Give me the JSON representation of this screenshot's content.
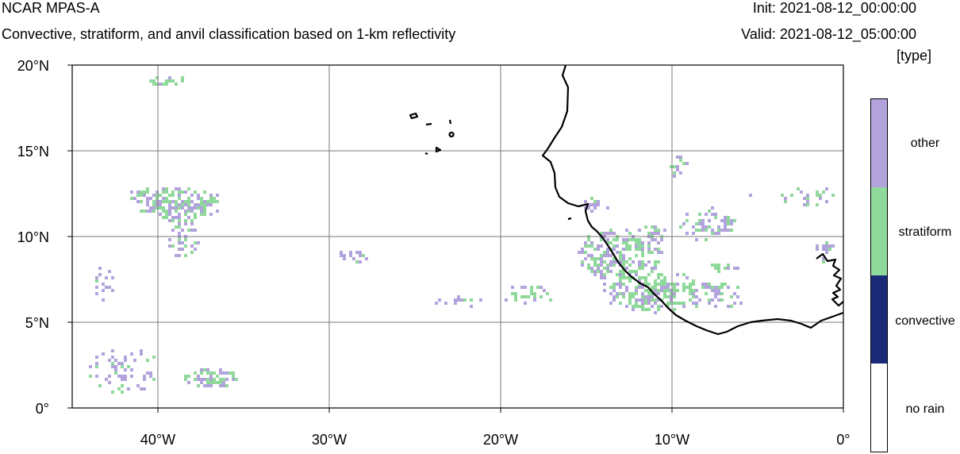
{
  "header": {
    "title": "NCAR MPAS-A",
    "subtitle": "Convective, stratiform, and anvil classification based on 1-km reflectivity",
    "init": "Init: 2021-08-12_00:00:00",
    "valid": "Valid: 2021-08-12_05:00:00",
    "units": "[type]"
  },
  "map": {
    "lat_labels": [
      "20°N",
      "15°N",
      "10°N",
      "5°N",
      "0°"
    ],
    "lon_labels": [
      "40°W",
      "30°W",
      "20°W",
      "10°W",
      "0°"
    ],
    "lon_range": [
      -45,
      0
    ],
    "lat_range": [
      0,
      20
    ],
    "colors": {
      "other": "#b3a3dc",
      "stratiform": "#8fd99a",
      "convective": "#1a2a78",
      "coast": "#000000",
      "grid": "#7a7a7a"
    }
  },
  "legend": {
    "items": [
      {
        "label": "other",
        "color": "#b3a3dc"
      },
      {
        "label": "stratiform",
        "color": "#8fd99a"
      },
      {
        "label": "convective",
        "color": "#1a2a78"
      },
      {
        "label": "no rain",
        "color": "#ffffff"
      }
    ]
  }
}
